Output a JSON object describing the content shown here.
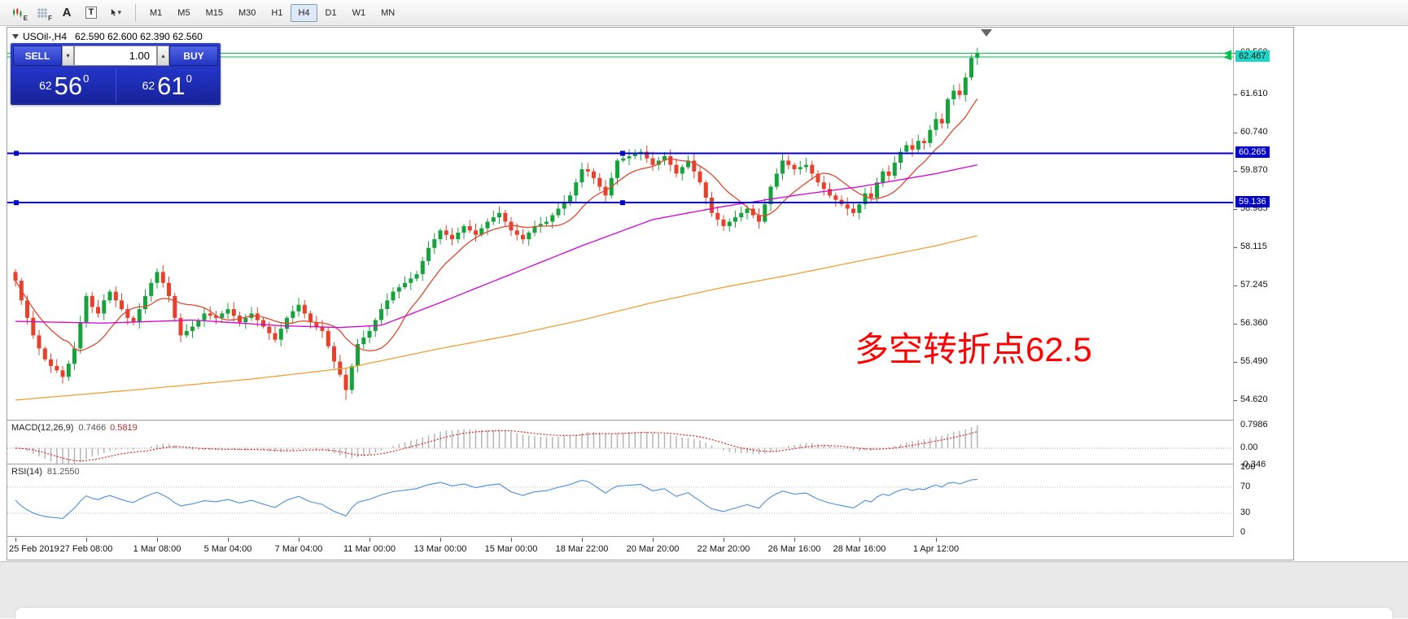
{
  "toolbar": {
    "icon_badges": {
      "e": "E",
      "f": "F",
      "a": "A",
      "t": "T"
    },
    "cursor_caret": "▾",
    "timeframes": [
      "M1",
      "M5",
      "M15",
      "M30",
      "H1",
      "H4",
      "D1",
      "W1",
      "MN"
    ],
    "active_timeframe": "H4"
  },
  "chart": {
    "symbol_title": "USOil-,H4",
    "ohlc_line": "62.590 62.600 62.390 62.560"
  },
  "trade_panel": {
    "sell_label": "SELL",
    "buy_label": "BUY",
    "volume": "1.00",
    "vol_down_icon": "▾",
    "vol_up_icon": "▴",
    "sell_price": {
      "prefix": "62",
      "big": "56",
      "sup": "0"
    },
    "buy_price": {
      "prefix": "62",
      "big": "61",
      "sup": "0"
    }
  },
  "annotation": {
    "text": "多空转折点62.5",
    "color": "#ff0000"
  },
  "price_scale": {
    "labels": [
      {
        "text": "62.560",
        "price": 62.56,
        "type": "normal"
      },
      {
        "text": "62.467",
        "price": 62.467,
        "type": "ask"
      },
      {
        "text": "61.610",
        "price": 61.61,
        "type": "normal"
      },
      {
        "text": "60.740",
        "price": 60.74,
        "type": "normal"
      },
      {
        "text": "60.265",
        "price": 60.265,
        "type": "line"
      },
      {
        "text": "59.870",
        "price": 59.87,
        "type": "normal"
      },
      {
        "text": "59.136",
        "price": 59.136,
        "type": "line"
      },
      {
        "text": "58.985",
        "price": 58.985,
        "type": "normal"
      },
      {
        "text": "58.115",
        "price": 58.115,
        "type": "normal"
      },
      {
        "text": "57.245",
        "price": 57.245,
        "type": "normal"
      },
      {
        "text": "56.360",
        "price": 56.36,
        "type": "normal"
      },
      {
        "text": "55.490",
        "price": 55.49,
        "type": "normal"
      },
      {
        "text": "54.620",
        "price": 54.62,
        "type": "normal"
      }
    ]
  },
  "indicators": {
    "macd": {
      "name": "MACD(12,26,9)",
      "value_main": "0.7466",
      "value_signal": "0.5819",
      "scale": [
        "0.7986",
        "0.00",
        "-0.346"
      ]
    },
    "rsi": {
      "name": "RSI(14)",
      "value": "81.2550",
      "scale": [
        100,
        70,
        30,
        0
      ],
      "levels": [
        70,
        30
      ]
    }
  },
  "time_axis": [
    {
      "label": "25 Feb 2019",
      "i": 0
    },
    {
      "label": "27 Feb 08:00",
      "i": 12
    },
    {
      "label": "1 Mar 08:00",
      "i": 24
    },
    {
      "label": "5 Mar 04:00",
      "i": 36
    },
    {
      "label": "7 Mar 04:00",
      "i": 48
    },
    {
      "label": "11 Mar 00:00",
      "i": 60
    },
    {
      "label": "13 Mar 00:00",
      "i": 72
    },
    {
      "label": "15 Mar 00:00",
      "i": 84
    },
    {
      "label": "18 Mar 22:00",
      "i": 96
    },
    {
      "label": "20 Mar 20:00",
      "i": 108
    },
    {
      "label": "22 Mar 20:00",
      "i": 120
    },
    {
      "label": "26 Mar 16:00",
      "i": 132
    },
    {
      "label": "28 Mar 16:00",
      "i": 143
    },
    {
      "label": "1 Apr 12:00",
      "i": 156
    }
  ],
  "chart_data": {
    "type": "candlestick",
    "symbol": "USOil-",
    "timeframe": "H4",
    "ohlc_display": {
      "open": "62.590",
      "high": "62.600",
      "low": "62.390",
      "close": "62.560"
    },
    "ylim": [
      54.17,
      63.14
    ],
    "bull_color": "#17a33b",
    "bear_color": "#e8402a",
    "closes": [
      57.35,
      56.9,
      56.5,
      56.1,
      55.8,
      55.55,
      55.4,
      55.3,
      55.15,
      55.45,
      55.8,
      56.4,
      57.0,
      56.75,
      56.6,
      56.9,
      57.1,
      56.9,
      56.7,
      56.5,
      56.4,
      56.7,
      57.0,
      57.3,
      57.55,
      57.3,
      57.0,
      56.5,
      56.1,
      56.2,
      56.3,
      56.45,
      56.6,
      56.55,
      56.5,
      56.6,
      56.7,
      56.55,
      56.4,
      56.5,
      56.6,
      56.45,
      56.3,
      56.15,
      56.0,
      56.25,
      56.5,
      56.65,
      56.8,
      56.6,
      56.4,
      56.3,
      56.2,
      55.85,
      55.5,
      55.2,
      54.85,
      55.4,
      55.9,
      56.05,
      56.2,
      56.45,
      56.7,
      56.9,
      57.1,
      57.2,
      57.3,
      57.4,
      57.5,
      57.8,
      58.1,
      58.3,
      58.5,
      58.4,
      58.3,
      58.45,
      58.6,
      58.5,
      58.4,
      58.55,
      58.7,
      58.8,
      58.9,
      58.7,
      58.5,
      58.4,
      58.3,
      58.45,
      58.6,
      58.65,
      58.7,
      58.85,
      59.0,
      59.15,
      59.3,
      59.6,
      59.9,
      59.85,
      59.7,
      59.5,
      59.3,
      59.7,
      60.1,
      60.15,
      60.2,
      60.25,
      60.3,
      60.15,
      60.0,
      60.1,
      60.2,
      60.0,
      59.8,
      59.95,
      60.1,
      59.85,
      59.6,
      59.25,
      58.9,
      58.75,
      58.6,
      58.7,
      58.8,
      58.9,
      59.0,
      58.85,
      58.7,
      59.1,
      59.5,
      59.8,
      60.1,
      60.0,
      59.9,
      59.95,
      60.0,
      59.8,
      59.6,
      59.45,
      59.3,
      59.2,
      59.1,
      59.0,
      58.9,
      59.1,
      59.35,
      59.25,
      59.6,
      59.85,
      59.75,
      60.05,
      60.3,
      60.45,
      60.35,
      60.55,
      60.5,
      60.8,
      61.05,
      60.95,
      61.5,
      61.7,
      61.6,
      62.0,
      62.45,
      62.56
    ],
    "spikes": [
      {
        "i": 0,
        "high": 57.62
      },
      {
        "i": 56,
        "low": 54.62
      },
      {
        "i": 163,
        "high": 62.68
      }
    ],
    "hlines": [
      {
        "price": 62.553,
        "color": "#00c34a",
        "width": 1,
        "arrow": true
      },
      {
        "price": 62.467,
        "color": "#00c34a",
        "width": 1,
        "arrow": true
      },
      {
        "price": 60.265,
        "color": "#0000c8",
        "width": 2,
        "handles": true
      },
      {
        "price": 59.136,
        "color": "#0000c8",
        "width": 2,
        "handles": true
      }
    ],
    "moving_averages": [
      {
        "name": "fast-ma",
        "type": "sma",
        "period": 10,
        "color": "#e0482e"
      },
      {
        "name": "medium-ma",
        "type": "anchored",
        "color": "#d400d4",
        "anchors": [
          [
            0,
            56.42
          ],
          [
            15,
            56.38
          ],
          [
            30,
            56.45
          ],
          [
            45,
            56.32
          ],
          [
            55,
            56.28
          ],
          [
            62,
            56.33
          ],
          [
            72,
            56.85
          ],
          [
            84,
            57.5
          ],
          [
            96,
            58.15
          ],
          [
            108,
            58.75
          ],
          [
            120,
            59.05
          ],
          [
            132,
            59.3
          ],
          [
            143,
            59.5
          ],
          [
            156,
            59.8
          ],
          [
            163,
            60.0
          ]
        ]
      },
      {
        "name": "slow-ma",
        "type": "anchored",
        "color": "#eca236",
        "anchors": [
          [
            0,
            54.62
          ],
          [
            20,
            54.85
          ],
          [
            40,
            55.1
          ],
          [
            56,
            55.35
          ],
          [
            72,
            55.8
          ],
          [
            84,
            56.1
          ],
          [
            96,
            56.45
          ],
          [
            108,
            56.85
          ],
          [
            120,
            57.2
          ],
          [
            132,
            57.5
          ],
          [
            143,
            57.8
          ],
          [
            156,
            58.15
          ],
          [
            163,
            58.38
          ]
        ]
      }
    ],
    "macd": {
      "fast": 12,
      "slow": 26,
      "signal": 9,
      "histogram_color": "#b6b6b6",
      "signal_color": "#dd2222"
    },
    "rsi": {
      "period": 14,
      "color": "#4a8fd8",
      "levels": [
        70,
        30
      ]
    }
  }
}
